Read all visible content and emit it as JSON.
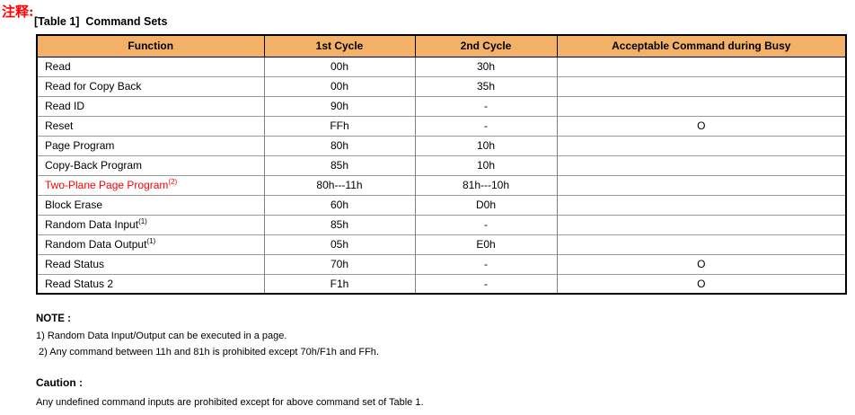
{
  "annotation": "注释:",
  "title": "[Table 1]  Command Sets",
  "table": {
    "headers": [
      "Function",
      "1st Cycle",
      "2nd Cycle",
      "Acceptable Command during Busy"
    ],
    "rows": [
      {
        "function": "Read",
        "sup": "",
        "red": false,
        "cycle1": "00h",
        "cycle2": "30h",
        "busy": ""
      },
      {
        "function": "Read for Copy Back",
        "sup": "",
        "red": false,
        "cycle1": "00h",
        "cycle2": "35h",
        "busy": ""
      },
      {
        "function": "Read ID",
        "sup": "",
        "red": false,
        "cycle1": "90h",
        "cycle2": "-",
        "busy": ""
      },
      {
        "function": "Reset",
        "sup": "",
        "red": false,
        "cycle1": "FFh",
        "cycle2": "-",
        "busy": "O"
      },
      {
        "function": "Page Program",
        "sup": "",
        "red": false,
        "cycle1": "80h",
        "cycle2": "10h",
        "busy": ""
      },
      {
        "function": "Copy-Back Program",
        "sup": "",
        "red": false,
        "cycle1": "85h",
        "cycle2": "10h",
        "busy": ""
      },
      {
        "function": "Two-Plane Page Program",
        "sup": "(2)",
        "red": true,
        "cycle1": "80h---11h",
        "cycle2": "81h---10h",
        "busy": ""
      },
      {
        "function": "Block Erase",
        "sup": "",
        "red": false,
        "cycle1": "60h",
        "cycle2": "D0h",
        "busy": ""
      },
      {
        "function": "Random Data Input",
        "sup": "(1)",
        "red": false,
        "cycle1": "85h",
        "cycle2": "-",
        "busy": ""
      },
      {
        "function": "Random Data Output",
        "sup": "(1)",
        "red": false,
        "cycle1": "05h",
        "cycle2": "E0h",
        "busy": ""
      },
      {
        "function": "Read Status",
        "sup": "",
        "red": false,
        "cycle1": "70h",
        "cycle2": "-",
        "busy": "O"
      },
      {
        "function": "Read Status 2",
        "sup": "",
        "red": false,
        "cycle1": "F1h",
        "cycle2": "-",
        "busy": "O"
      }
    ]
  },
  "notes": {
    "heading": "NOTE :",
    "items": [
      "1) Random Data Input/Output can be executed in a page.",
      " 2) Any command between 11h and 81h is prohibited except 70h/F1h and FFh."
    ]
  },
  "caution": {
    "heading": "Caution :",
    "text": "Any undefined command inputs are prohibited except for above command set of Table 1."
  },
  "colors": {
    "header_bg": "#f3b167",
    "red_text": "#ff0000"
  }
}
